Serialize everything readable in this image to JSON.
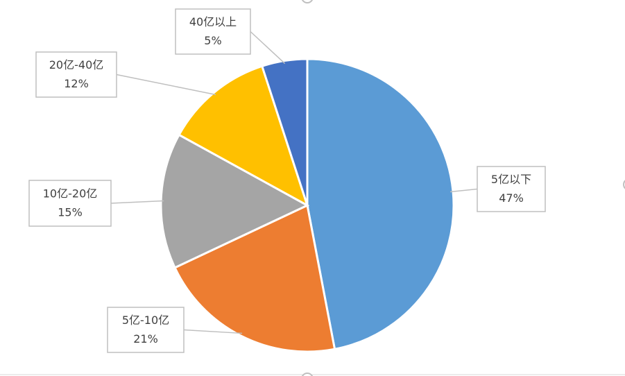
{
  "chart_data": {
    "type": "pie",
    "categories": [
      "5亿以下",
      "5亿-10亿",
      "10亿-20亿",
      "20亿-40亿",
      "40亿以上"
    ],
    "values": [
      47,
      21,
      15,
      12,
      5
    ],
    "value_labels": [
      "47%",
      "21%",
      "15%",
      "12%",
      "5%"
    ],
    "colors": [
      "#5b9bd5",
      "#ed7d31",
      "#a5a5a5",
      "#ffc000",
      "#4472c4"
    ]
  }
}
